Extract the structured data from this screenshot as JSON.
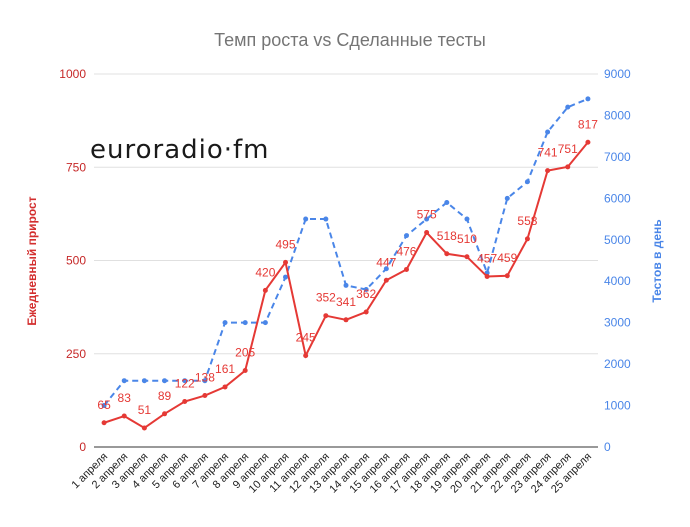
{
  "chart_data": {
    "type": "line",
    "title": "Темп роста vs Сделанные тесты",
    "watermark": "euroradio·fm",
    "categories": [
      "1 апреля",
      "2 апреля",
      "3 апреля",
      "4 апреля",
      "5 апреля",
      "6 апреля",
      "7 апреля",
      "8 апреля",
      "9 апреля",
      "10 апреля",
      "11 апреля",
      "12 апреля",
      "13 апреля",
      "14 апреля",
      "15 апреля",
      "16 апреля",
      "17 апреля",
      "18 апреля",
      "19 апреля",
      "20 апреля",
      "21 апреля",
      "22 апреля",
      "23 апреля",
      "24 апреля",
      "25 апреля"
    ],
    "ylabel": "Ежедневный прирост",
    "y2label": "Тестов в день",
    "ylim": [
      0,
      1000
    ],
    "y2lim": [
      0,
      9000
    ],
    "yticks": [
      0,
      250,
      500,
      750,
      1000
    ],
    "y2ticks": [
      0,
      1000,
      2000,
      3000,
      4000,
      5000,
      6000,
      7000,
      8000,
      9000
    ],
    "grid": true,
    "series": [
      {
        "name": "Ежедневный прирост",
        "axis": "left",
        "color": "#e53935",
        "values": [
          65,
          83,
          51,
          89,
          122,
          138,
          161,
          205,
          420,
          495,
          245,
          352,
          341,
          362,
          447,
          476,
          575,
          518,
          510,
          457,
          459,
          558,
          741,
          751,
          817
        ]
      },
      {
        "name": "Тестов в день",
        "axis": "right",
        "color": "#4a86e8",
        "style": "dashed",
        "values": [
          1000,
          1600,
          1600,
          1600,
          1600,
          1600,
          3000,
          3000,
          3000,
          4100,
          5500,
          5500,
          3900,
          3800,
          4300,
          5100,
          5500,
          5900,
          5500,
          4200,
          6000,
          6400,
          7600,
          8200,
          8400
        ]
      }
    ]
  }
}
